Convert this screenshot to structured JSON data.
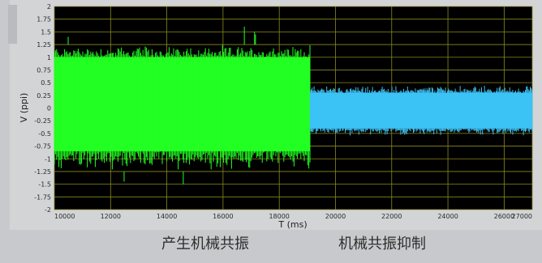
{
  "chart_data": {
    "type": "line",
    "xlabel": "T (ms)",
    "ylabel": "V (ppi)",
    "xlim": [
      10000,
      27000
    ],
    "ylim": [
      -2,
      2
    ],
    "x_ticks": [
      "10000",
      "12000",
      "14000",
      "16000",
      "18000",
      "20000",
      "22000",
      "24000",
      "26000",
      "27000"
    ],
    "y_ticks": [
      "2",
      "1.75",
      "1.5",
      "1.25",
      "1",
      "0.75",
      "0.5",
      "0.25",
      "0",
      "-0.25",
      "-0.5",
      "-0.75",
      "-1",
      "-1.25",
      "-1.5",
      "-1.75",
      "-2"
    ],
    "grid": true,
    "background": "#000000",
    "grid_color": "#8a8a1e",
    "series": [
      {
        "segment": "resonance",
        "color": "#22ff22",
        "x_range": [
          10000,
          19100
        ],
        "amplitude_band": [
          -1.25,
          1.25
        ],
        "core_band": [
          -0.85,
          1.0
        ],
        "spikes": [
          1.6,
          1.5,
          1.45,
          1.4,
          -1.5,
          -1.45
        ]
      },
      {
        "segment": "suppression",
        "color": "#3cc3f5",
        "x_range": [
          19100,
          27000
        ],
        "amplitude_band": [
          -0.55,
          0.45
        ],
        "core_band": [
          -0.4,
          0.3
        ]
      }
    ]
  },
  "captions": {
    "left": "产生机械共振",
    "right": "机械共振抑制"
  }
}
